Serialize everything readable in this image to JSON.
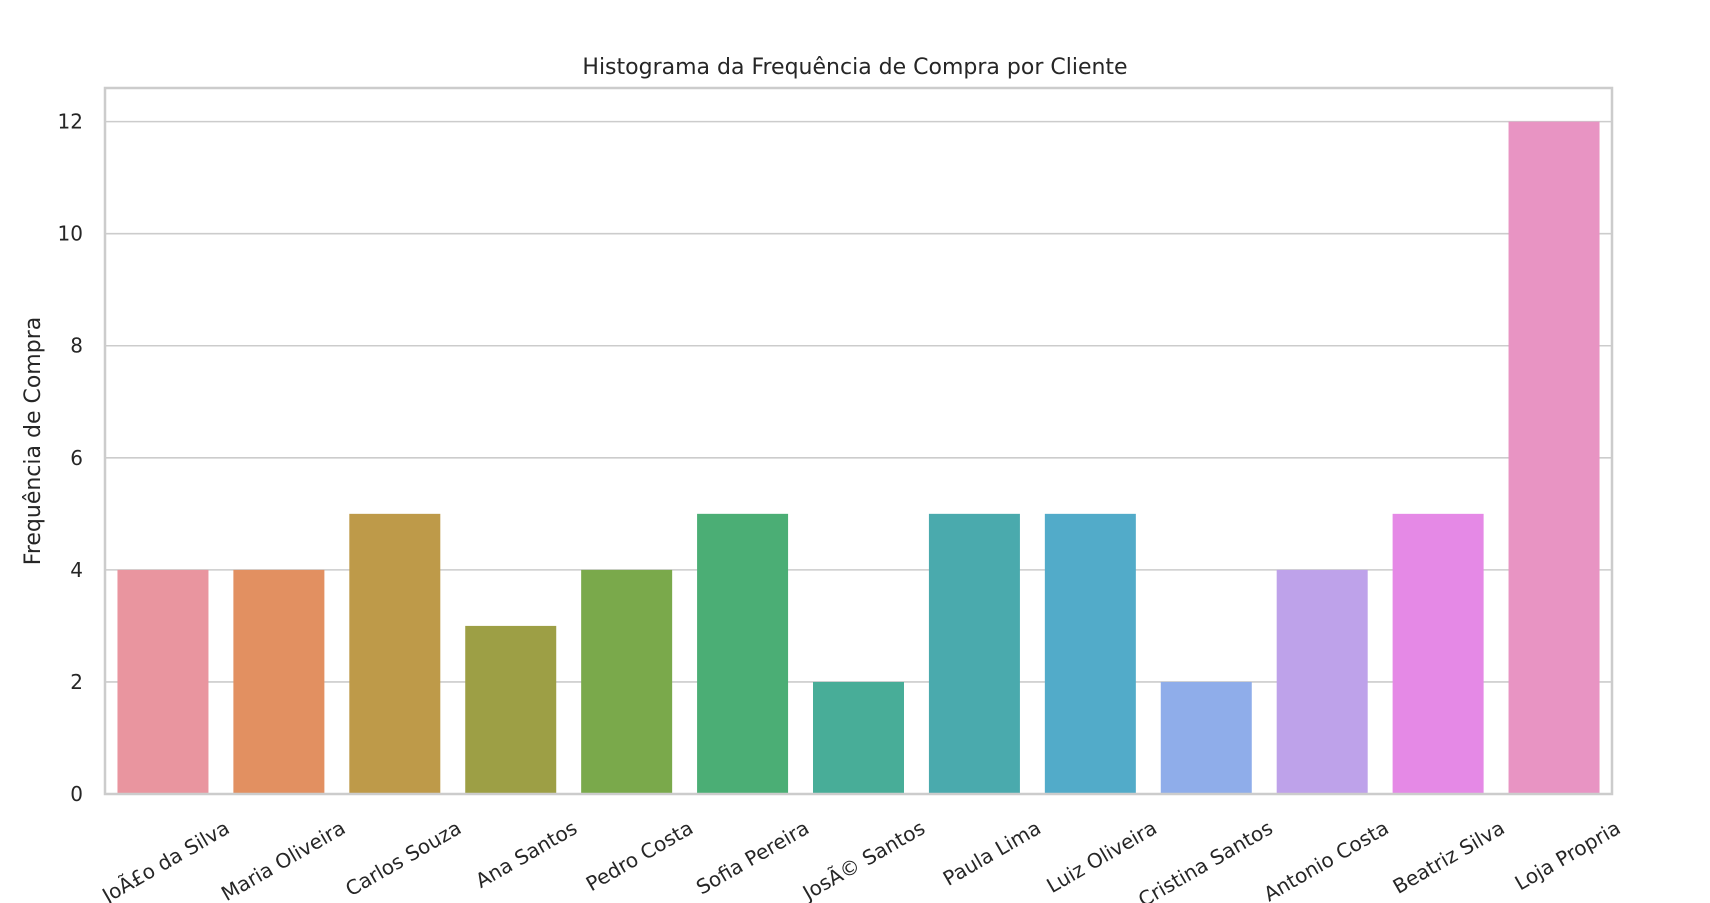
{
  "chart_data": {
    "type": "bar",
    "title": "Histograma da Frequência de Compra por Cliente",
    "xlabel": "",
    "ylabel": "Frequência de Compra",
    "ylim": [
      0,
      12.6
    ],
    "yticks": [
      0,
      2,
      4,
      6,
      8,
      10,
      12
    ],
    "grid": true,
    "categories": [
      "JoÃ£o da Silva",
      "Maria Oliveira",
      "Carlos Souza",
      "Ana Santos",
      "Pedro Costa",
      "Sofia Pereira",
      "JosÃ© Santos",
      "Paula Lima",
      "Luiz Oliveira",
      "Cristina Santos",
      "Antonio Costa",
      "Beatriz Silva",
      "Loja Propria"
    ],
    "values": [
      4,
      4,
      5,
      3,
      4,
      5,
      2,
      5,
      5,
      2,
      4,
      5,
      12
    ],
    "colors": [
      "#e9959f",
      "#e29061",
      "#be9a49",
      "#9d9f45",
      "#7aa94b",
      "#4bae75",
      "#48ad98",
      "#4aaaad",
      "#52abc9",
      "#8fadea",
      "#bea2ea",
      "#e589e6",
      "#e894c3"
    ]
  }
}
